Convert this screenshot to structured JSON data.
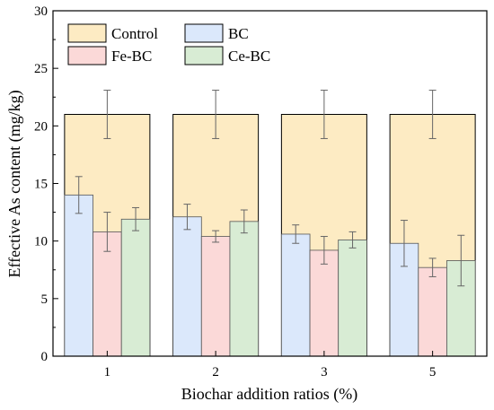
{
  "chart_data": {
    "type": "bar",
    "xlabel": "Biochar addition ratios (%)",
    "ylabel": "Effective As content (mg/kg)",
    "ylim": [
      0,
      30
    ],
    "yticks": [
      0,
      5,
      10,
      15,
      20,
      25,
      30
    ],
    "categories": [
      "1",
      "2",
      "3",
      "5"
    ],
    "legend": {
      "placement": "top-left",
      "columns": 2
    },
    "background_series": {
      "name": "Control",
      "color": "#fdebc3",
      "values": [
        21.0,
        21.0,
        21.0,
        21.0
      ],
      "errors": [
        2.1,
        2.1,
        2.1,
        2.1
      ]
    },
    "series": [
      {
        "name": "BC",
        "color": "#dbe8fb",
        "values": [
          14.0,
          12.1,
          10.6,
          9.8
        ],
        "errors": [
          1.6,
          1.1,
          0.8,
          2.0
        ]
      },
      {
        "name": "Fe-BC",
        "color": "#fbd9d8",
        "values": [
          10.8,
          10.4,
          9.2,
          7.7
        ],
        "errors": [
          1.7,
          0.5,
          1.2,
          0.8
        ]
      },
      {
        "name": "Ce-BC",
        "color": "#d8ecd4",
        "values": [
          11.9,
          11.7,
          10.1,
          8.3
        ],
        "errors": [
          1.0,
          1.0,
          0.7,
          2.2
        ]
      }
    ]
  }
}
